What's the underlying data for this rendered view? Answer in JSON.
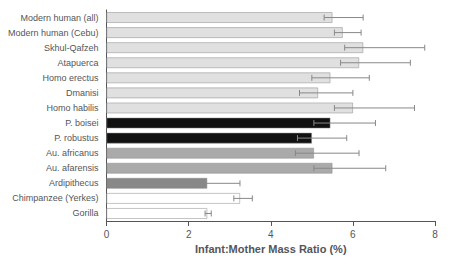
{
  "chart_data": {
    "type": "bar",
    "orientation": "horizontal",
    "xlabel": "Infant:Mother Mass Ratio (%)",
    "categories": [
      "Gorilla",
      "Chimpanzee (Yerkes)",
      "Ardipithecus",
      "Au. afarensis",
      "Au. africanus",
      "P. robustus",
      "P. boisei",
      "Homo habilis",
      "Dmanisi",
      "Homo erectus",
      "Atapuerca",
      "Skhul-Qafzeh",
      "Modern human (Cebu)",
      "Modern human (all)"
    ],
    "values": [
      2.45,
      3.25,
      2.45,
      5.5,
      5.05,
      5.0,
      5.45,
      6.0,
      5.15,
      5.45,
      6.15,
      6.25,
      5.75,
      5.5
    ],
    "xerr_lo": [
      0.05,
      0.15,
      0.35,
      0.45,
      0.45,
      0.35,
      0.4,
      0.45,
      0.45,
      0.45,
      0.45,
      0.45,
      0.2,
      0.2
    ],
    "xerr_hi": [
      0.1,
      0.3,
      0.8,
      1.3,
      1.1,
      0.85,
      1.1,
      1.5,
      0.85,
      0.95,
      1.25,
      1.5,
      0.45,
      0.75
    ],
    "colors": [
      "#ffffff",
      "#ffffff",
      "#888888",
      "#aaaaaa",
      "#aaaaaa",
      "#111111",
      "#111111",
      "#e0e0e0",
      "#e0e0e0",
      "#e0e0e0",
      "#e0e0e0",
      "#e0e0e0",
      "#e0e0e0",
      "#e0e0e0"
    ],
    "xlim": [
      0,
      8
    ],
    "xticks": [
      0,
      2,
      4,
      6,
      8
    ],
    "grid": false
  }
}
